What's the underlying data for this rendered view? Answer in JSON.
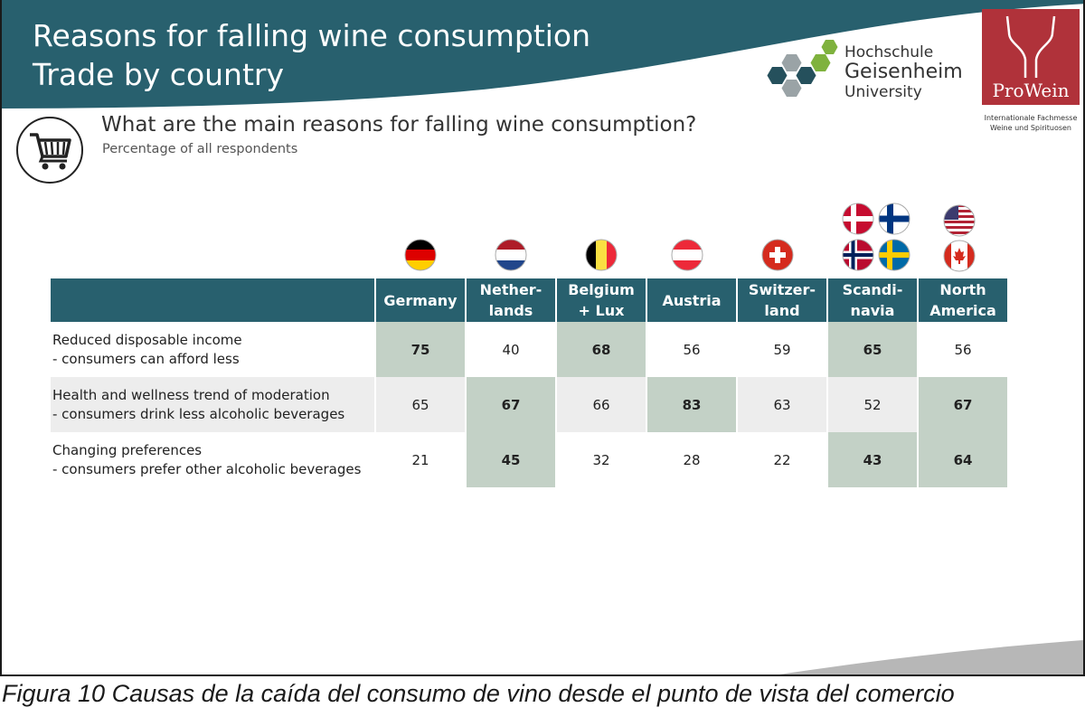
{
  "title_line1": "Reasons for falling wine consumption",
  "title_line2": "Trade by country",
  "question": "What are the main reasons for falling wine consumption?",
  "subtitle": "Percentage of all respondents",
  "logos": {
    "hg_line1": "Hochschule",
    "hg_line2": "Geisenheim",
    "hg_line3": "University",
    "prowein": "ProWein",
    "prowein_sub1": "Internationale Fachmesse",
    "prowein_sub2": "Weine und Spirituosen"
  },
  "colors": {
    "header": "#28606e",
    "highlight": "#c3d1c6",
    "row_band": "#ededed",
    "prowein": "#b0323a"
  },
  "icons": [
    "shopping-cart-icon"
  ],
  "flags": [
    {
      "country": "Germany",
      "icons": [
        "germany-flag-icon"
      ]
    },
    {
      "country": "Netherlands",
      "icons": [
        "netherlands-flag-icon"
      ]
    },
    {
      "country": "Belgium",
      "icons": [
        "belgium-flag-icon"
      ]
    },
    {
      "country": "Austria",
      "icons": [
        "austria-flag-icon"
      ]
    },
    {
      "country": "Switzerland",
      "icons": [
        "switzerland-flag-icon"
      ]
    },
    {
      "country": "Scandinavia",
      "icons": [
        "denmark-flag-icon",
        "finland-flag-icon",
        "norway-flag-icon",
        "sweden-flag-icon"
      ]
    },
    {
      "country": "North America",
      "icons": [
        "usa-flag-icon",
        "canada-flag-icon"
      ]
    }
  ],
  "chart_data": {
    "type": "table",
    "columns": [
      "Germany",
      "Nether-\nlands",
      "Belgium\n+ Lux",
      "Austria",
      "Switzer-\nland",
      "Scandi-\nnavia",
      "North\nAmerica"
    ],
    "rows": [
      {
        "label_line1": "Reduced disposable income",
        "label_line2": "- consumers can afford less",
        "values": [
          75,
          40,
          68,
          56,
          59,
          65,
          56
        ],
        "highlight": [
          true,
          false,
          true,
          false,
          false,
          true,
          false
        ]
      },
      {
        "label_line1": "Health and wellness trend of moderation",
        "label_line2": "- consumers drink less alcoholic beverages",
        "values": [
          65,
          67,
          66,
          83,
          63,
          52,
          67
        ],
        "highlight": [
          false,
          true,
          false,
          true,
          false,
          false,
          true
        ]
      },
      {
        "label_line1": "Changing preferences",
        "label_line2": "- consumers prefer other alcoholic beverages",
        "values": [
          21,
          45,
          32,
          28,
          22,
          43,
          64
        ],
        "highlight": [
          false,
          true,
          false,
          false,
          false,
          true,
          true
        ]
      }
    ]
  },
  "caption": "Figura 10 Causas de la caída del consumo de vino desde el punto de vista del comercio"
}
